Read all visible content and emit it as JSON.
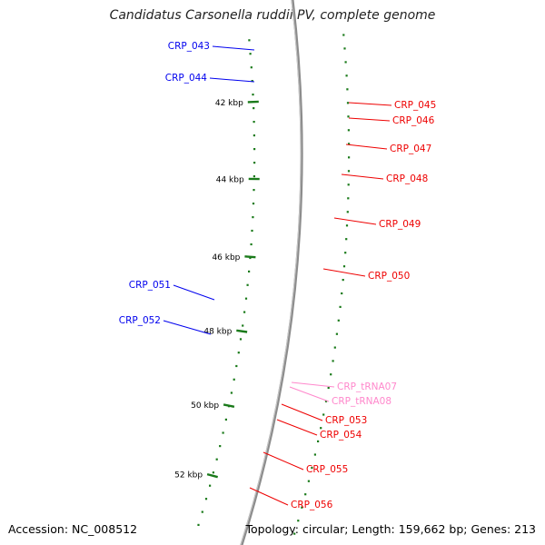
{
  "title": "Candidatus Carsonella ruddii PV, complete genome",
  "accession": "Accession: NC_008512",
  "summary": "Topology: circular; Length: 159,662 bp; Genes: 213",
  "tick_labels": [
    "42 kbp",
    "44 kbp",
    "46 kbp",
    "48 kbp",
    "50 kbp",
    "52 kbp"
  ],
  "genes": [
    {
      "label": "CRP_043",
      "strand": "plus"
    },
    {
      "label": "CRP_044",
      "strand": "plus"
    },
    {
      "label": "CRP_045",
      "strand": "minus"
    },
    {
      "label": "CRP_046",
      "strand": "minus"
    },
    {
      "label": "CRP_047",
      "strand": "minus"
    },
    {
      "label": "CRP_048",
      "strand": "minus"
    },
    {
      "label": "CRP_049",
      "strand": "minus"
    },
    {
      "label": "CRP_050",
      "strand": "minus"
    },
    {
      "label": "CRP_051",
      "strand": "plus"
    },
    {
      "label": "CRP_052",
      "strand": "plus"
    },
    {
      "label": "CRP_tRNA07",
      "strand": "minus"
    },
    {
      "label": "CRP_tRNA08",
      "strand": "minus"
    },
    {
      "label": "CRP_053",
      "strand": "minus"
    },
    {
      "label": "CRP_054",
      "strand": "minus"
    },
    {
      "label": "CRP_055",
      "strand": "minus"
    },
    {
      "label": "CRP_056",
      "strand": "minus"
    }
  ],
  "colors": {
    "plus_gene": "#0000ee",
    "minus_gene": "#ee0000",
    "cds_plus": "#0a0af0",
    "cds_minus": "#ff1010",
    "rna": "#f08080",
    "trna": "#ff88cc",
    "olive": "#c9c47a",
    "steelblue": "#4682b4",
    "magenta": "#ff1493",
    "orange": "#ffa500",
    "backbone": "#8c8c8c",
    "tick": "#1a7a1a"
  }
}
